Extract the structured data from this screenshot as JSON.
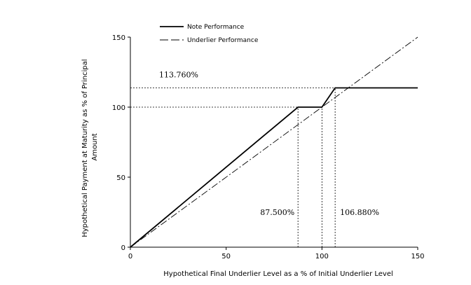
{
  "chart_data": {
    "type": "line",
    "title": "",
    "xlabel": "Hypothetical Final Underlier Level as a % of Initial Underlier Level",
    "ylabel_lines": [
      "Hypothetical Payment at Maturity as % of Principal",
      "Amount"
    ],
    "xlim": [
      0,
      150
    ],
    "ylim": [
      0,
      150
    ],
    "xticks": [
      0,
      50,
      100,
      150
    ],
    "yticks": [
      0,
      50,
      100,
      150
    ],
    "grid": false,
    "legend_position": "top-left",
    "series": [
      {
        "name": "Note Performance",
        "style": "solid",
        "x": [
          0,
          87.5,
          100,
          106.88,
          150
        ],
        "y": [
          0,
          100,
          100,
          113.76,
          113.76
        ]
      },
      {
        "name": "Underlier Performance",
        "style": "dash-dot",
        "x": [
          0,
          150
        ],
        "y": [
          0,
          150
        ]
      }
    ],
    "reference_lines": [
      {
        "type": "horizontal",
        "y": 113.76,
        "x_to": 106.88,
        "label": "113.760%"
      },
      {
        "type": "horizontal",
        "y": 100,
        "x_to": 100
      },
      {
        "type": "vertical",
        "x": 87.5,
        "y_to": 100,
        "label": "87.500%"
      },
      {
        "type": "vertical",
        "x": 100,
        "y_to": 100
      },
      {
        "type": "vertical",
        "x": 106.88,
        "y_to": 113.76,
        "label": "106.880%"
      }
    ]
  }
}
